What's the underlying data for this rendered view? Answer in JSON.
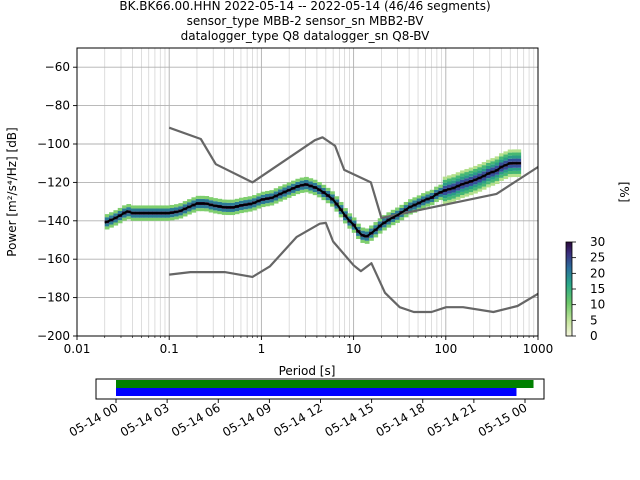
{
  "chart_data": {
    "type": "line",
    "title_lines": [
      "BK.BK66.00.HHN   2022-05-14 -- 2022-05-14  (46/46 segments)",
      "sensor_type MBB-2 sensor_sn MBB2-BV",
      "datalogger_type Q8 datalogger_sn Q8-BV"
    ],
    "xlabel": "Period [s]",
    "ylabel": "Power [m²/s⁴/Hz] [dB]",
    "xscale": "log",
    "xlim": [
      0.01,
      1000
    ],
    "ylim": [
      -200,
      -50
    ],
    "x_ticks": [
      0.01,
      0.1,
      1,
      10,
      100,
      1000
    ],
    "x_tick_labels": [
      "0.01",
      "0.1",
      "1",
      "10",
      "100",
      "1000"
    ],
    "y_ticks": [
      -200,
      -180,
      -160,
      -140,
      -120,
      -100,
      -80,
      -60
    ],
    "y_tick_labels": [
      "−200",
      "−180",
      "−160",
      "−140",
      "−120",
      "−100",
      "−80",
      "−60"
    ],
    "grid": true,
    "colorbar": {
      "label": "[%]",
      "range": [
        0,
        30
      ],
      "ticks": [
        0,
        5,
        10,
        15,
        20,
        25,
        30
      ],
      "tick_labels": [
        "0",
        "5",
        "10",
        "15",
        "20",
        "25",
        "30"
      ]
    },
    "series": [
      {
        "role": "noise-model-high",
        "color": "#666666",
        "x": [
          0.1,
          0.22,
          0.32,
          0.8,
          3.8,
          4.6,
          6.3,
          7.9,
          15.4,
          20,
          354.8,
          1000
        ],
        "y": [
          -91.5,
          -97.4,
          -110.5,
          -120,
          -98,
          -96.5,
          -101,
          -113.5,
          -120,
          -138.5,
          -126,
          -112
        ]
      },
      {
        "role": "noise-model-low",
        "color": "#666666",
        "x": [
          0.1,
          0.17,
          0.4,
          0.8,
          1.24,
          2.4,
          4.3,
          5.0,
          6.0,
          10,
          12,
          15.6,
          21.9,
          31.6,
          45,
          70,
          101,
          154,
          328,
          600,
          1000
        ],
        "y": [
          -168,
          -166.7,
          -166.7,
          -169.2,
          -163.7,
          -148.5,
          -141.5,
          -141.1,
          -150.8,
          -163.2,
          -166.2,
          -162.1,
          -177.5,
          -185,
          -187.5,
          -187.5,
          -185,
          -185,
          -187.5,
          -184.4,
          -178
        ]
      },
      {
        "role": "mode",
        "color": "#000000",
        "x": [
          0.02,
          0.025,
          0.03,
          0.035,
          0.04,
          0.05,
          0.06,
          0.08,
          0.1,
          0.13,
          0.16,
          0.2,
          0.25,
          0.3,
          0.4,
          0.5,
          0.6,
          0.8,
          1.0,
          1.3,
          1.6,
          2.0,
          2.5,
          3.0,
          3.5,
          4.0,
          5.0,
          6.0,
          7.0,
          8.0,
          9.0,
          10,
          11,
          12,
          13,
          14,
          16,
          18,
          20,
          25,
          30,
          35,
          40,
          50,
          60,
          70,
          80,
          100,
          120,
          150,
          200,
          250,
          300,
          350,
          400,
          500,
          650
        ],
        "y": [
          -141,
          -139,
          -137,
          -135,
          -136,
          -136,
          -136,
          -136,
          -136,
          -135,
          -133,
          -131,
          -131,
          -132,
          -133,
          -133,
          -132,
          -131,
          -129,
          -128,
          -126,
          -124,
          -122,
          -121,
          -122,
          -123,
          -126,
          -129,
          -133,
          -137,
          -140,
          -142,
          -145,
          -147,
          -148,
          -148,
          -146,
          -144,
          -142,
          -139,
          -137,
          -135,
          -133,
          -131,
          -129,
          -128,
          -126,
          -124,
          -123,
          -121,
          -119,
          -117,
          -115,
          -114,
          -112,
          -110,
          -110
        ]
      }
    ]
  },
  "timeline": {
    "ticks": [
      "05-14 00",
      "05-14 03",
      "05-14 06",
      "05-14 09",
      "05-14 12",
      "05-14 15",
      "05-14 18",
      "05-14 21",
      "05-15 00"
    ],
    "bars": [
      {
        "role": "data-coverage",
        "color": "#008000",
        "start_hour": 0,
        "end_hour": 24.5
      },
      {
        "role": "segments-used",
        "color": "#0000ff",
        "start_hour": 0,
        "end_hour": 23.5
      }
    ]
  }
}
